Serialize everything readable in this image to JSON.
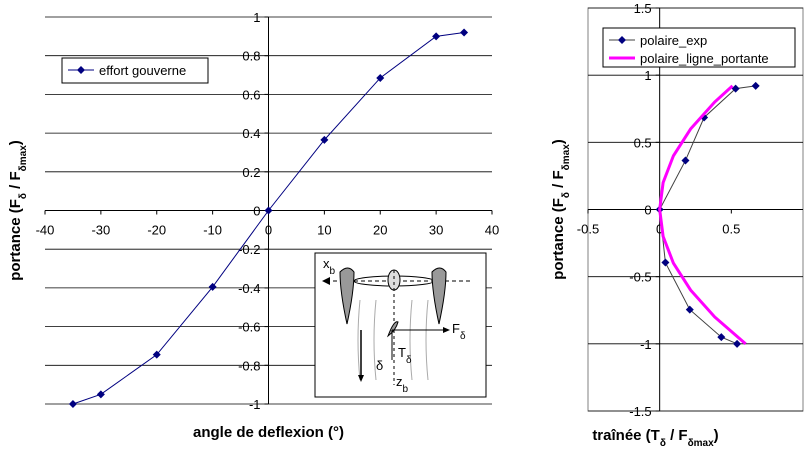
{
  "chart_data": [
    {
      "type": "line",
      "xlabel": [
        "angle de deflexion (°)"
      ],
      "ylabel": [
        "portance (F",
        "δ",
        " / F",
        "δmax",
        ")"
      ],
      "xlim": [
        -40,
        40
      ],
      "xticks": [
        -40,
        -30,
        -20,
        -10,
        0,
        10,
        20,
        30,
        40
      ],
      "ylim": [
        -1,
        1
      ],
      "yticks": [
        -1,
        -0.8,
        -0.6,
        -0.4,
        -0.2,
        0,
        0.2,
        0.4,
        0.6,
        0.8,
        1
      ],
      "grid": true,
      "legend": "upper left",
      "series": [
        {
          "name": "effort gouverne",
          "color": "#000080",
          "line_color": "#000080",
          "line_width": 1,
          "marker": "diamond",
          "x": [
            -35,
            -30,
            -20,
            -10,
            0,
            10,
            20,
            30,
            35
          ],
          "values": [
            -1,
            -0.95,
            -0.745,
            -0.395,
            0,
            0.365,
            0.685,
            0.9,
            0.92
          ]
        }
      ],
      "annotations": [
        {
          "text": "x",
          "sub": "b"
        },
        {
          "text": "F",
          "sub": "δ"
        },
        {
          "text": "T",
          "sub": "δ"
        },
        {
          "text": "δ",
          "sub": ""
        },
        {
          "text": "z",
          "sub": "b"
        }
      ]
    },
    {
      "type": "line",
      "xlabel": [
        "traînée (T",
        "δ",
        " / F",
        "δmax",
        ")"
      ],
      "ylabel": [
        "portance (F",
        "δ",
        " / F",
        "δmax",
        ")"
      ],
      "xlim": [
        -0.5,
        1
      ],
      "xticks": [
        -0.5,
        0,
        0.5
      ],
      "ylim": [
        -1.5,
        1.5
      ],
      "yticks": [
        -1.5,
        -1,
        -0.5,
        0,
        0.5,
        1,
        1.5
      ],
      "grid": true,
      "legend": "upper right",
      "series": [
        {
          "name": "polaire_exp",
          "color": "#000080",
          "line_color": "#404040",
          "line_width": 1,
          "marker": "diamond",
          "x": [
            0.54,
            0.43,
            0.21,
            0.04,
            0,
            0.18,
            0.31,
            0.53,
            0.67
          ],
          "values": [
            -1,
            -0.95,
            -0.745,
            -0.395,
            0,
            0.365,
            0.685,
            0.9,
            0.92
          ]
        },
        {
          "name": "polaire_ligne_portante",
          "color": "#ff00ff",
          "line_color": "#ff00ff",
          "line_width": 3,
          "marker": "none",
          "x": [
            0.508,
            0.384,
            0.216,
            0.096,
            0.024,
            0,
            0.024,
            0.096,
            0.216,
            0.384,
            0.6
          ],
          "values": [
            0.92,
            0.8,
            0.6,
            0.4,
            0.2,
            0,
            -0.2,
            -0.4,
            -0.6,
            -0.8,
            -1
          ]
        }
      ]
    }
  ]
}
